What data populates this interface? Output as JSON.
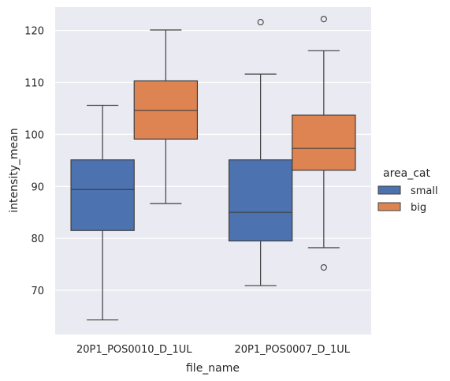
{
  "chart_data": {
    "type": "box",
    "xlabel": "file_name",
    "ylabel": "intensity_mean",
    "ylim": [
      61.5,
      124.5
    ],
    "y_ticks": [
      70,
      80,
      90,
      100,
      110,
      120
    ],
    "grid": true,
    "legend": {
      "title": "area_cat",
      "placement": "right",
      "entries": [
        "small",
        "big"
      ]
    },
    "categories": [
      "20P1_POS0010_D_1UL",
      "20P1_POS0007_D_1UL"
    ],
    "series": [
      {
        "name": "small",
        "color": "#4c72b0",
        "boxes": [
          {
            "whisker_low": 64.3,
            "q1": 81.5,
            "median": 89.4,
            "q3": 95.1,
            "whisker_high": 105.6,
            "outliers": []
          },
          {
            "whisker_low": 70.9,
            "q1": 79.5,
            "median": 85.0,
            "q3": 95.1,
            "whisker_high": 111.6,
            "outliers": [
              121.6
            ]
          }
        ]
      },
      {
        "name": "big",
        "color": "#dd8452",
        "boxes": [
          {
            "whisker_low": 86.7,
            "q1": 99.1,
            "median": 104.6,
            "q3": 110.3,
            "whisker_high": 120.1,
            "outliers": []
          },
          {
            "whisker_low": 78.2,
            "q1": 93.1,
            "median": 97.3,
            "q3": 103.7,
            "whisker_high": 116.1,
            "outliers": [
              74.4,
              122.2
            ]
          }
        ]
      }
    ]
  }
}
